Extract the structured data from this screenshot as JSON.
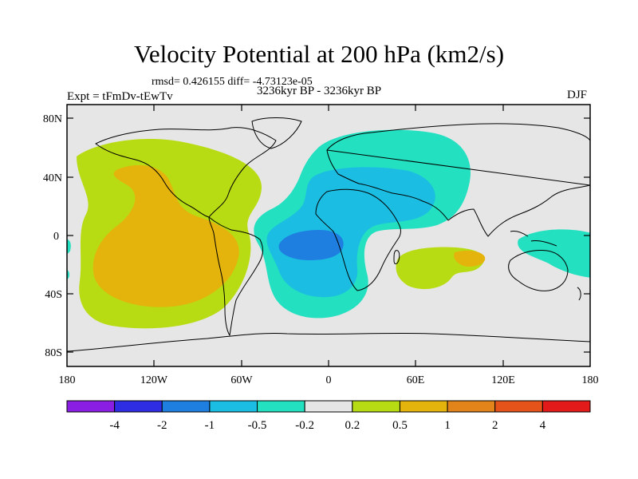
{
  "title": "Velocity Potential at 200 hPa (km2/s)",
  "stats": "rmsd= 0.426155  diff= -4.73123e-05",
  "period": "3236kyr BP - 3236kyr BP",
  "experiment": "Expt = tFmDv-tEwTv",
  "season": "DJF",
  "lat_ticks": [
    "80N",
    "40N",
    "0",
    "40S",
    "80S"
  ],
  "lon_ticks": [
    "180",
    "120W",
    "60W",
    "0",
    "60E",
    "120E",
    "180"
  ],
  "colorbar": {
    "labels": [
      "-4",
      "-2",
      "-1",
      "-0.5",
      "-0.2",
      "0.2",
      "0.5",
      "1",
      "2",
      "4"
    ],
    "colors": [
      "#8a1fe3",
      "#2e2de3",
      "#1e7fe0",
      "#1cbde3",
      "#22e0c0",
      "#e6e6e6",
      "#b8dc14",
      "#e4b30c",
      "#e2841a",
      "#e6531a",
      "#e31a1a"
    ]
  },
  "colors": {
    "background": "#e6e6e6",
    "coast": "#000000"
  }
}
